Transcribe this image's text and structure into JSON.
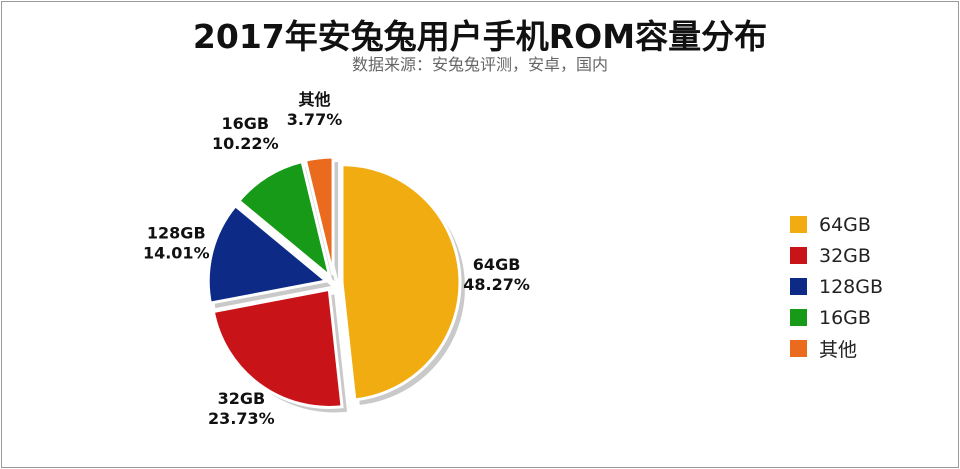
{
  "chart_data": {
    "type": "pie",
    "title": "2017年安兔兔用户手机ROM容量分布",
    "subtitle": "数据来源：安兔兔评测，安卓，国内",
    "slices": [
      {
        "label": "64GB",
        "value": 48.27,
        "percent_label": "48.27%",
        "color": "#f0ac10"
      },
      {
        "label": "32GB",
        "value": 23.73,
        "percent_label": "23.73%",
        "color": "#c81418"
      },
      {
        "label": "128GB",
        "value": 14.01,
        "percent_label": "14.01%",
        "color": "#0c2a86"
      },
      {
        "label": "16GB",
        "value": 10.22,
        "percent_label": "10.22%",
        "color": "#179a18"
      },
      {
        "label": "其他",
        "value": 3.77,
        "percent_label": "3.77%",
        "color": "#ea6a1e"
      }
    ],
    "legend_position": "right",
    "exploded": true
  }
}
